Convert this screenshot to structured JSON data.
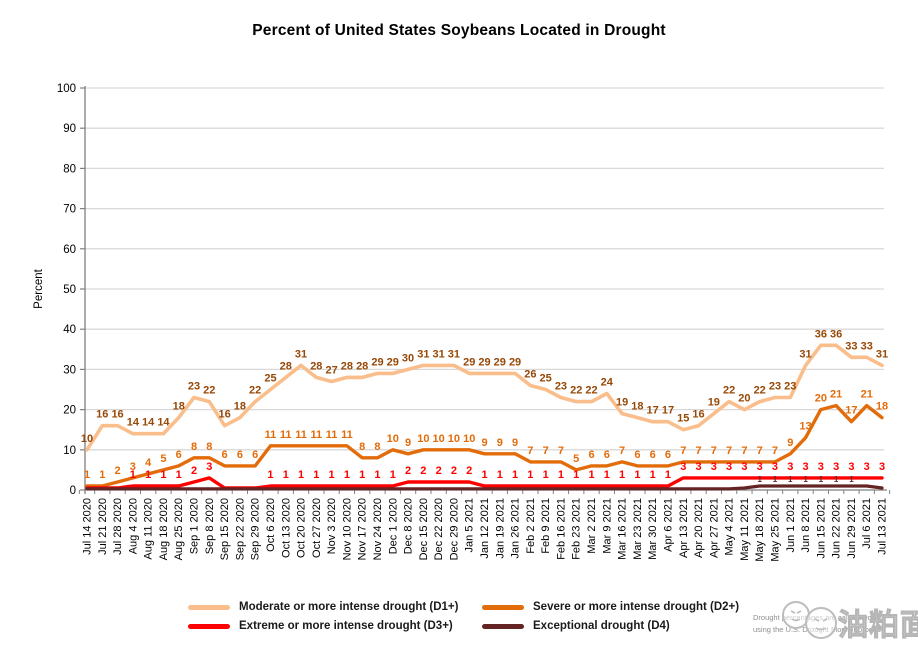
{
  "title": "Percent of United States Soybeans Located in Drought",
  "chart_data": {
    "type": "line",
    "title": "Percent of United States Soybeans Located in Drought",
    "xlabel": "",
    "ylabel": "Percent",
    "ylim": [
      0,
      100
    ],
    "yticks": [
      0,
      10,
      20,
      30,
      40,
      50,
      60,
      70,
      80,
      90,
      100
    ],
    "grid": true,
    "legend_position": "bottom",
    "categories": [
      "Jul 14 2020",
      "Jul 21 2020",
      "Jul 28 2020",
      "Aug 4 2020",
      "Aug 11 2020",
      "Aug 18 2020",
      "Aug 25 2020",
      "Sep 1 2020",
      "Sep 8 2020",
      "Sep 15 2020",
      "Sep 22 2020",
      "Sep 29 2020",
      "Oct 6 2020",
      "Oct 13 2020",
      "Oct 20 2020",
      "Oct 27 2020",
      "Nov 3 2020",
      "Nov 10 2020",
      "Nov 17 2020",
      "Nov 24 2020",
      "Dec 1 2020",
      "Dec 8 2020",
      "Dec 15 2020",
      "Dec 22 2020",
      "Dec 29 2020",
      "Jan 5 2021",
      "Jan 12 2021",
      "Jan 19 2021",
      "Jan 26 2021",
      "Feb 2 2021",
      "Feb 9 2021",
      "Feb 16 2021",
      "Feb 23 2021",
      "Mar 2 2021",
      "Mar 9 2021",
      "Mar 16 2021",
      "Mar 23 2021",
      "Mar 30 2021",
      "Apr 6 2021",
      "Apr 13 2021",
      "Apr 20 2021",
      "Apr 27 2021",
      "May 4 2021",
      "May 11 2021",
      "May 18 2021",
      "May 25 2021",
      "Jun 1 2021",
      "Jun 8 2021",
      "Jun 15 2021",
      "Jun 22 2021",
      "Jun 29 2021",
      "Jul 6 2021",
      "Jul 13 2021"
    ],
    "series": [
      {
        "name": "Moderate or more intense drought (D1+)",
        "color": "#F9BE8B",
        "label_color": "#974806",
        "line_width": 3.6,
        "label_size": 11,
        "label_offset": -8,
        "values": [
          10,
          16,
          16,
          14,
          14,
          14,
          18,
          23,
          22,
          16,
          18,
          22,
          25,
          28,
          31,
          28,
          27,
          28,
          28,
          29,
          29,
          30,
          31,
          31,
          31,
          29,
          29,
          29,
          29,
          26,
          25,
          23,
          22,
          22,
          24,
          19,
          18,
          17,
          17,
          15,
          16,
          19,
          22,
          20,
          22,
          23,
          23,
          31,
          36,
          36,
          33,
          33,
          31
        ]
      },
      {
        "name": "Severe or more intense drought (D2+)",
        "color": "#E36C0A",
        "label_color": "#E36C0A",
        "line_width": 3.4,
        "label_size": 11,
        "label_offset": -8,
        "values": [
          1,
          1,
          2,
          3,
          4,
          5,
          6,
          8,
          8,
          6,
          6,
          6,
          11,
          11,
          11,
          11,
          11,
          11,
          8,
          8,
          10,
          9,
          10,
          10,
          10,
          10,
          9,
          9,
          9,
          7,
          7,
          7,
          5,
          6,
          6,
          7,
          6,
          6,
          6,
          7,
          7,
          7,
          7,
          7,
          7,
          7,
          9,
          13,
          20,
          21,
          17,
          21,
          18
        ]
      },
      {
        "name": "Extreme or more intense drought (D3+)",
        "color": "#FF0000",
        "label_color": "#FF0000",
        "line_width": 3.4,
        "label_size": 11,
        "label_offset": -8,
        "values": [
          0.5,
          0.5,
          0.5,
          1,
          1,
          1,
          1,
          2,
          3,
          0.5,
          0.5,
          0.5,
          1,
          1,
          1,
          1,
          1,
          1,
          1,
          1,
          1,
          2,
          2,
          2,
          2,
          2,
          1,
          1,
          1,
          1,
          1,
          1,
          1,
          1,
          1,
          1,
          1,
          1,
          1,
          3,
          3,
          3,
          3,
          3,
          3,
          3,
          3,
          3,
          3,
          3,
          3,
          3,
          3
        ],
        "labels": [
          "",
          "",
          "",
          "1",
          "1",
          "1",
          "1",
          "2",
          "3",
          "",
          "",
          "",
          "1",
          "1",
          "1",
          "1",
          "1",
          "1",
          "1",
          "1",
          "1",
          "2",
          "2",
          "2",
          "2",
          "2",
          "1",
          "1",
          "1",
          "1",
          "1",
          "1",
          "1",
          "1",
          "1",
          "1",
          "1",
          "1",
          "1",
          "3",
          "3",
          "3",
          "3",
          "3",
          "3",
          "3",
          "3",
          "3",
          "3",
          "3",
          "3",
          "3",
          "3"
        ]
      },
      {
        "name": "Exceptional drought (D4)",
        "color": "#632423",
        "label_color": "#632423",
        "line_width": 3.2,
        "label_size": 8,
        "label_offset": -4,
        "values": [
          0.3,
          0.3,
          0.3,
          0.3,
          0.3,
          0.3,
          0.3,
          0.3,
          0.3,
          0.3,
          0.3,
          0.3,
          0.3,
          0.3,
          0.3,
          0.3,
          0.3,
          0.3,
          0.3,
          0.3,
          0.3,
          0.3,
          0.3,
          0.3,
          0.3,
          0.3,
          0.3,
          0.3,
          0.3,
          0.3,
          0.3,
          0.3,
          0.3,
          0.3,
          0.3,
          0.3,
          0.3,
          0.3,
          0.3,
          0.3,
          0.3,
          0.3,
          0.3,
          0.5,
          1,
          1,
          1,
          1,
          1,
          1,
          1,
          1,
          0.5
        ],
        "labels": [
          "",
          "",
          "",
          "",
          "",
          "",
          "",
          "",
          "",
          "",
          "",
          "",
          "",
          "",
          "",
          "",
          "",
          "",
          "",
          "",
          "",
          "",
          "",
          "",
          "",
          "",
          "",
          "",
          "",
          "",
          "",
          "",
          "",
          "",
          "",
          "",
          "",
          "",
          "",
          "",
          "",
          "",
          "",
          "",
          "1",
          "1",
          "1",
          "1",
          "1",
          "1",
          "1",
          "",
          ""
        ]
      }
    ]
  },
  "footnote": {
    "line1": "Drought percentages are calculated",
    "line2": "using the U.S. Drought Monitor product."
  },
  "watermark": {
    "text": "油粕面"
  }
}
